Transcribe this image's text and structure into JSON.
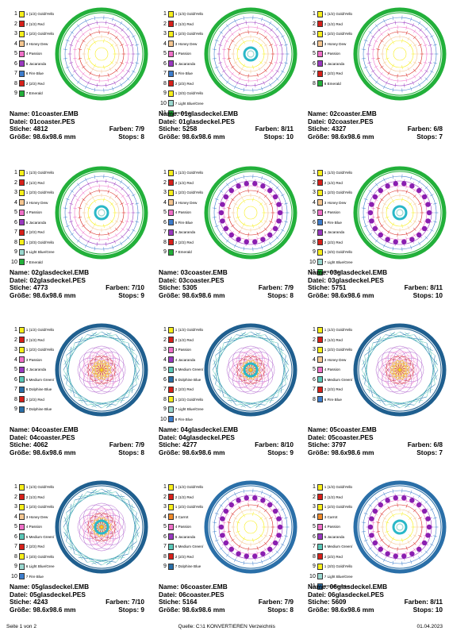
{
  "cells": [
    {
      "name": "Name: 01coaster.EMB",
      "file": "Datei: 01coaster.PES",
      "stitches": "Stiche: 4812",
      "colors": "Farben: 7/9",
      "size": "Größe: 98.6x98.6 mm",
      "stops": "Stops: 8",
      "style": "coaster-star",
      "legend": [
        {
          "n": "1",
          "c": "#f8ef1a",
          "t": "1 (1/2) Gold/Yello"
        },
        {
          "n": "2",
          "c": "#d8201a",
          "t": "2 (1/2) Red"
        },
        {
          "n": "3",
          "c": "#f8ef1a",
          "t": "1 (2/2) Gold/Yello"
        },
        {
          "n": "4",
          "c": "#f5c690",
          "t": "3 Honey Dew"
        },
        {
          "n": "5",
          "c": "#f070c8",
          "t": "4 Passion"
        },
        {
          "n": "6",
          "c": "#9a38c0",
          "t": "5 Jacaranda"
        },
        {
          "n": "7",
          "c": "#3d7dcd",
          "t": "6 Fire Blue"
        },
        {
          "n": "8",
          "c": "#d8201a",
          "t": "2 (2/2) Red"
        },
        {
          "n": "9",
          "c": "#22b03a",
          "t": "7 Emerald"
        }
      ]
    },
    {
      "name": "Name: 01glasdeckel.EMB",
      "file": "Datei: 01glasdeckel.PES",
      "stitches": "Stiche: 5258",
      "colors": "Farben: 8/11",
      "size": "Größe: 98.6x98.6 mm",
      "stops": "Stops: 10",
      "style": "deckel-star",
      "legend": [
        {
          "n": "1",
          "c": "#f8ef1a",
          "t": "1 (1/3) Gold/Yello"
        },
        {
          "n": "2",
          "c": "#d8201a",
          "t": "2 (1/2) Red"
        },
        {
          "n": "3",
          "c": "#f8ef1a",
          "t": "1 (2/3) Gold/Yello"
        },
        {
          "n": "4",
          "c": "#f5c690",
          "t": "3 Honey Dew"
        },
        {
          "n": "5",
          "c": "#f070c8",
          "t": "4 Passion"
        },
        {
          "n": "6",
          "c": "#9a38c0",
          "t": "5 Jacaranda"
        },
        {
          "n": "7",
          "c": "#3d7dcd",
          "t": "6 Fire Blue"
        },
        {
          "n": "8",
          "c": "#d8201a",
          "t": "2 (2/2) Red"
        },
        {
          "n": "9",
          "c": "#f8ef1a",
          "t": "1 (3/3) Gold/Yello"
        },
        {
          "n": "10",
          "c": "#9ad8d0",
          "t": "7 Light Blue/Gree"
        },
        {
          "n": "11",
          "c": "#22b03a",
          "t": "8 Emerald"
        }
      ]
    },
    {
      "name": "Name: 02coaster.EMB",
      "file": "Datei: 02coaster.PES",
      "stitches": "Stiche: 4327",
      "colors": "Farben: 6/8",
      "size": "Größe: 98.6x98.6 mm",
      "stops": "Stops: 7",
      "style": "coaster-star2",
      "legend": [
        {
          "n": "1",
          "c": "#f8ef1a",
          "t": "1 (1/2) Gold/Yello"
        },
        {
          "n": "2",
          "c": "#d8201a",
          "t": "2 (1/2) Red"
        },
        {
          "n": "3",
          "c": "#f8ef1a",
          "t": "1 (2/2) Gold/Yello"
        },
        {
          "n": "4",
          "c": "#f5c690",
          "t": "3 Honey Dew"
        },
        {
          "n": "5",
          "c": "#f070c8",
          "t": "4 Passion"
        },
        {
          "n": "6",
          "c": "#9a38c0",
          "t": "5 Jacaranda"
        },
        {
          "n": "7",
          "c": "#d8201a",
          "t": "2 (2/2) Red"
        },
        {
          "n": "8",
          "c": "#22b03a",
          "t": "6 Emerald"
        }
      ]
    },
    {
      "name": "Name: 02glasdeckel.EMB",
      "file": "Datei: 02glasdeckel.PES",
      "stitches": "Stiche: 4773",
      "colors": "Farben: 7/10",
      "size": "Größe: 98.6x98.6 mm",
      "stops": "Stops: 9",
      "style": "deckel-star2",
      "legend": [
        {
          "n": "1",
          "c": "#f8ef1a",
          "t": "1 (1/3) Gold/Yello"
        },
        {
          "n": "2",
          "c": "#d8201a",
          "t": "2 (1/2) Red"
        },
        {
          "n": "3",
          "c": "#f8ef1a",
          "t": "1 (2/3) Gold/Yello"
        },
        {
          "n": "4",
          "c": "#f5c690",
          "t": "3 Honey Dew"
        },
        {
          "n": "5",
          "c": "#f070c8",
          "t": "4 Passion"
        },
        {
          "n": "6",
          "c": "#9a38c0",
          "t": "5 Jacaranda"
        },
        {
          "n": "7",
          "c": "#d8201a",
          "t": "2 (2/2) Red"
        },
        {
          "n": "8",
          "c": "#f8ef1a",
          "t": "1 (3/3) Gold/Yello"
        },
        {
          "n": "9",
          "c": "#9ad8d0",
          "t": "6 Light Blue/Gree"
        },
        {
          "n": "10",
          "c": "#22b03a",
          "t": "7 Emerald"
        }
      ]
    },
    {
      "name": "Name: 03coaster.EMB",
      "file": "Datei: 03coaster.PES",
      "stitches": "Stiche: 5305",
      "colors": "Farben: 7/9",
      "size": "Größe: 98.6x98.6 mm",
      "stops": "Stops: 8",
      "style": "coaster-dots",
      "legend": [
        {
          "n": "1",
          "c": "#f8ef1a",
          "t": "1 (1/2) Gold/Yello"
        },
        {
          "n": "2",
          "c": "#d8201a",
          "t": "2 (1/2) Red"
        },
        {
          "n": "3",
          "c": "#f8ef1a",
          "t": "1 (2/2) Gold/Yello"
        },
        {
          "n": "4",
          "c": "#f5c690",
          "t": "3 Honey Dew"
        },
        {
          "n": "5",
          "c": "#f070c8",
          "t": "4 Passion"
        },
        {
          "n": "6",
          "c": "#3d7dcd",
          "t": "5 Fire Blue"
        },
        {
          "n": "7",
          "c": "#9a38c0",
          "t": "6 Jacaranda"
        },
        {
          "n": "8",
          "c": "#d8201a",
          "t": "2 (2/2) Red"
        },
        {
          "n": "9",
          "c": "#22b03a",
          "t": "7 Emerald"
        }
      ]
    },
    {
      "name": "Name: 03glasdeckel.EMB",
      "file": "Datei: 03glasdeckel.PES",
      "stitches": "Stiche: 5751",
      "colors": "Farben: 8/11",
      "size": "Größe: 98.6x98.6 mm",
      "stops": "Stops: 10",
      "style": "deckel-dots",
      "legend": [
        {
          "n": "1",
          "c": "#f8ef1a",
          "t": "1 (1/3) Gold/Yello"
        },
        {
          "n": "2",
          "c": "#d8201a",
          "t": "2 (1/2) Red"
        },
        {
          "n": "3",
          "c": "#f8ef1a",
          "t": "1 (2/3) Gold/Yello"
        },
        {
          "n": "4",
          "c": "#f5c690",
          "t": "3 Honey Dew"
        },
        {
          "n": "5",
          "c": "#f070c8",
          "t": "4 Passion"
        },
        {
          "n": "6",
          "c": "#3d7dcd",
          "t": "5 Fire Blue"
        },
        {
          "n": "7",
          "c": "#9a38c0",
          "t": "6 Jacaranda"
        },
        {
          "n": "8",
          "c": "#d8201a",
          "t": "2 (2/2) Red"
        },
        {
          "n": "9",
          "c": "#f8ef1a",
          "t": "1 (3/3) Gold/Yello"
        },
        {
          "n": "10",
          "c": "#9ad8d0",
          "t": "7 Light Blue/Gree"
        },
        {
          "n": "11",
          "c": "#22b03a",
          "t": "8 Emerald"
        }
      ]
    },
    {
      "name": "Name: 04coaster.EMB",
      "file": "Datei: 04coaster.PES",
      "stitches": "Stiche: 4062",
      "colors": "Farben: 7/9",
      "size": "Größe: 98.6x98.6 mm",
      "stops": "Stops: 8",
      "style": "coaster-net",
      "legend": [
        {
          "n": "1",
          "c": "#f8ef1a",
          "t": "1 (1/2) Gold/Yello"
        },
        {
          "n": "2",
          "c": "#d8201a",
          "t": "2 (1/2) Red"
        },
        {
          "n": "3",
          "c": "#f8ef1a",
          "t": "1 (2/2) Gold/Yello"
        },
        {
          "n": "4",
          "c": "#f070c8",
          "t": "3 Passion"
        },
        {
          "n": "5",
          "c": "#9a38c0",
          "t": "4 Jacaranda"
        },
        {
          "n": "6",
          "c": "#5ac8b8",
          "t": "5 Medium Green/"
        },
        {
          "n": "7",
          "c": "#2a6fa8",
          "t": "6 Dolphine Blue"
        },
        {
          "n": "8",
          "c": "#d8201a",
          "t": "2 (2/2) Red"
        },
        {
          "n": "9",
          "c": "#2a6fa8",
          "t": "7 Dolphine Blue"
        }
      ]
    },
    {
      "name": "Name: 04glasdeckel.EMB",
      "file": "Datei: 04glasdeckel.PES",
      "stitches": "Stiche: 4277",
      "colors": "Farben: 8/10",
      "size": "Größe: 98.6x98.6 mm",
      "stops": "Stops: 9",
      "style": "deckel-net",
      "legend": [
        {
          "n": "1",
          "c": "#f8ef1a",
          "t": "1 (1/2) Gold/Yello"
        },
        {
          "n": "2",
          "c": "#d8201a",
          "t": "2 (1/2) Red"
        },
        {
          "n": "3",
          "c": "#f070c8",
          "t": "3 Passion"
        },
        {
          "n": "4",
          "c": "#9a38c0",
          "t": "4 Jacaranda"
        },
        {
          "n": "5",
          "c": "#5ac8b8",
          "t": "5 Medium Green/"
        },
        {
          "n": "6",
          "c": "#2a6fa8",
          "t": "6 Dolphine Blue"
        },
        {
          "n": "7",
          "c": "#d8201a",
          "t": "2 (2/2) Red"
        },
        {
          "n": "8",
          "c": "#f8ef1a",
          "t": "1 (2/2) Gold/Yello"
        },
        {
          "n": "9",
          "c": "#9ad8d0",
          "t": "7 Light Blue/Gree"
        },
        {
          "n": "10",
          "c": "#3d7dcd",
          "t": "8 Fire Blue"
        }
      ]
    },
    {
      "name": "Name: 05coaster.EMB",
      "file": "Datei: 05coaster.PES",
      "stitches": "Stiche: 3797",
      "colors": "Farben: 6/8",
      "size": "Größe: 98.6x98.6 mm",
      "stops": "Stops: 7",
      "style": "coaster-net2",
      "legend": [
        {
          "n": "1",
          "c": "#f8ef1a",
          "t": "1 (1/2) Gold/Yello"
        },
        {
          "n": "2",
          "c": "#d8201a",
          "t": "2 (1/2) Red"
        },
        {
          "n": "3",
          "c": "#f8ef1a",
          "t": "1 (2/2) Gold/Yello"
        },
        {
          "n": "4",
          "c": "#f5c690",
          "t": "3 Honey Dew"
        },
        {
          "n": "5",
          "c": "#f070c8",
          "t": "4 Passion"
        },
        {
          "n": "6",
          "c": "#5ac8b8",
          "t": "5 Medium Green/"
        },
        {
          "n": "7",
          "c": "#d8201a",
          "t": "2 (2/2) Red"
        },
        {
          "n": "8",
          "c": "#3d7dcd",
          "t": "6 Fire Blue"
        }
      ]
    },
    {
      "name": "Name: 05glasdeckel.EMB",
      "file": "Datei: 05glasdeckel.PES",
      "stitches": "Stiche: 4243",
      "colors": "Farben: 7/10",
      "size": "Größe: 98.6x98.6 mm",
      "stops": "Stops: 9",
      "style": "deckel-net2",
      "legend": [
        {
          "n": "1",
          "c": "#f8ef1a",
          "t": "1 (1/3) Gold/Yello"
        },
        {
          "n": "2",
          "c": "#d8201a",
          "t": "2 (1/2) Red"
        },
        {
          "n": "3",
          "c": "#f8ef1a",
          "t": "1 (2/3) Gold/Yello"
        },
        {
          "n": "4",
          "c": "#f5c690",
          "t": "3 Honey Dew"
        },
        {
          "n": "5",
          "c": "#f070c8",
          "t": "4 Passion"
        },
        {
          "n": "6",
          "c": "#5ac8b8",
          "t": "5 Medium Green/"
        },
        {
          "n": "7",
          "c": "#d8201a",
          "t": "2 (2/2) Red"
        },
        {
          "n": "8",
          "c": "#f8ef1a",
          "t": "1 (3/3) Gold/Yello"
        },
        {
          "n": "9",
          "c": "#9ad8d0",
          "t": "6 Light Blue/Gree"
        },
        {
          "n": "10",
          "c": "#3d7dcd",
          "t": "7 Fire Blue"
        }
      ]
    },
    {
      "name": "Name: 06coaster.EMB",
      "file": "Datei: 06coaster.PES",
      "stitches": "Stiche: 5164",
      "colors": "Farben: 7/9",
      "size": "Größe: 98.6x98.6 mm",
      "stops": "Stops: 8",
      "style": "coaster-dots2",
      "legend": [
        {
          "n": "1",
          "c": "#f8ef1a",
          "t": "1 (1/2) Gold/Yello"
        },
        {
          "n": "2",
          "c": "#d8201a",
          "t": "2 (1/2) Red"
        },
        {
          "n": "3",
          "c": "#f8ef1a",
          "t": "1 (2/2) Gold/Yello"
        },
        {
          "n": "4",
          "c": "#f08a2a",
          "t": "3 Carrot"
        },
        {
          "n": "5",
          "c": "#f070c8",
          "t": "4 Passion"
        },
        {
          "n": "6",
          "c": "#9a38c0",
          "t": "5 Jacaranda"
        },
        {
          "n": "7",
          "c": "#5ac8b8",
          "t": "6 Medium Green/"
        },
        {
          "n": "8",
          "c": "#d8201a",
          "t": "2 (2/2) Red"
        },
        {
          "n": "9",
          "c": "#2a6fa8",
          "t": "7 Dolphine Blue"
        }
      ]
    },
    {
      "name": "Name: 06glasdeckel.EMB",
      "file": "Datei: 06glasdeckel.PES",
      "stitches": "Stiche: 5609",
      "colors": "Farben: 8/11",
      "size": "Größe: 98.6x98.6 mm",
      "stops": "Stops: 10",
      "style": "deckel-dots2",
      "legend": [
        {
          "n": "1",
          "c": "#f8ef1a",
          "t": "1 (1/3) Gold/Yello"
        },
        {
          "n": "2",
          "c": "#d8201a",
          "t": "2 (1/2) Red"
        },
        {
          "n": "3",
          "c": "#f8ef1a",
          "t": "1 (2/3) Gold/Yello"
        },
        {
          "n": "4",
          "c": "#f08a2a",
          "t": "3 Carrot"
        },
        {
          "n": "5",
          "c": "#f070c8",
          "t": "4 Passion"
        },
        {
          "n": "6",
          "c": "#9a38c0",
          "t": "5 Jacaranda"
        },
        {
          "n": "7",
          "c": "#5ac8b8",
          "t": "6 Medium Green/"
        },
        {
          "n": "8",
          "c": "#d8201a",
          "t": "2 (2/2) Red"
        },
        {
          "n": "9",
          "c": "#f8ef1a",
          "t": "1 (3/3) Gold/Yello"
        },
        {
          "n": "10",
          "c": "#9ad8d0",
          "t": "7 Light Blue/Gree"
        },
        {
          "n": "11",
          "c": "#2a6fa8",
          "t": "8 Dolphine Blue"
        }
      ]
    }
  ],
  "footer": {
    "page": "Seite 1 von 2",
    "source": "Quelle: C:\\1 KONVERTIEREN Verzeichnis",
    "date": "01.04.2023"
  }
}
